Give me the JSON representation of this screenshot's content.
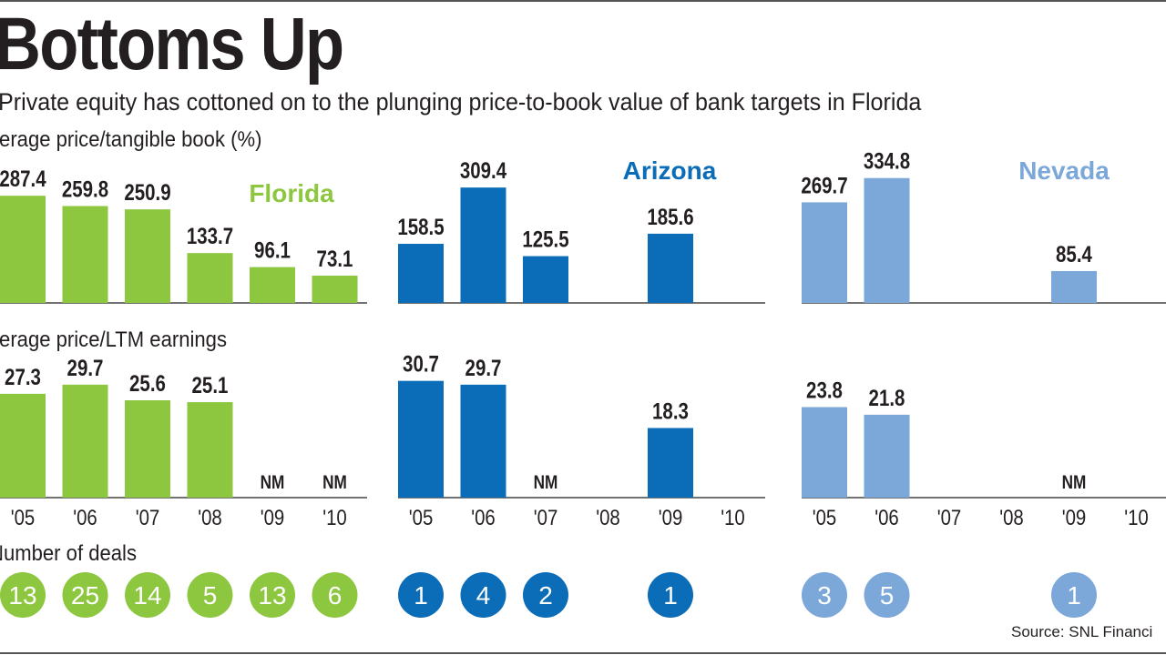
{
  "title": "Bottoms Up",
  "subtitle": "Private equity has cottoned on to the plunging price-to-book value of bank targets in Florida",
  "source": "Source: SNL Financi",
  "sections": {
    "book": "verage price/tangible book (%)",
    "earnings": "verage price/LTM earnings",
    "deals": "Number of deals"
  },
  "colors": {
    "Florida": "#8dc63f",
    "Arizona": "#0b6cb7",
    "Nevada": "#7ba7d9"
  },
  "chart_data": [
    {
      "type": "bar",
      "title": "Florida",
      "categories": [
        "'05",
        "'06",
        "'07",
        "'08",
        "'09",
        "'10"
      ],
      "series": [
        {
          "name": "Average price/tangible book (%)",
          "values": [
            287.4,
            259.8,
            250.9,
            133.7,
            96.1,
            73.1
          ],
          "labels": [
            "287.4",
            "259.8",
            "250.9",
            "133.7",
            "96.1",
            "73.1"
          ]
        },
        {
          "name": "Average price/LTM earnings",
          "values": [
            27.3,
            29.7,
            25.6,
            25.1,
            null,
            null
          ],
          "labels": [
            "27.3",
            "29.7",
            "25.6",
            "25.1",
            "NM",
            "NM"
          ]
        },
        {
          "name": "Number of deals",
          "values": [
            13,
            25,
            14,
            5,
            13,
            6
          ]
        }
      ]
    },
    {
      "type": "bar",
      "title": "Arizona",
      "categories": [
        "'05",
        "'06",
        "'07",
        "'08",
        "'09",
        "'10"
      ],
      "series": [
        {
          "name": "Average price/tangible book (%)",
          "values": [
            158.5,
            309.4,
            125.5,
            null,
            185.6,
            null
          ],
          "labels": [
            "158.5",
            "309.4",
            "125.5",
            "",
            "185.6",
            ""
          ]
        },
        {
          "name": "Average price/LTM earnings",
          "values": [
            30.7,
            29.7,
            null,
            null,
            18.3,
            null
          ],
          "labels": [
            "30.7",
            "29.7",
            "NM",
            "",
            "18.3",
            ""
          ]
        },
        {
          "name": "Number of deals",
          "values": [
            1,
            4,
            2,
            null,
            1,
            null
          ]
        }
      ]
    },
    {
      "type": "bar",
      "title": "Nevada",
      "categories": [
        "'05",
        "'06",
        "'07",
        "'08",
        "'09",
        "'10"
      ],
      "series": [
        {
          "name": "Average price/tangible book (%)",
          "values": [
            269.7,
            334.8,
            null,
            null,
            85.4,
            null
          ],
          "labels": [
            "269.7",
            "334.8",
            "",
            "",
            "85.4",
            ""
          ]
        },
        {
          "name": "Average price/LTM earnings",
          "values": [
            23.8,
            21.8,
            null,
            null,
            null,
            null
          ],
          "labels": [
            "23.8",
            "21.8",
            "",
            "",
            "NM",
            ""
          ]
        },
        {
          "name": "Number of deals",
          "values": [
            3,
            5,
            null,
            null,
            1,
            null
          ]
        }
      ]
    }
  ]
}
